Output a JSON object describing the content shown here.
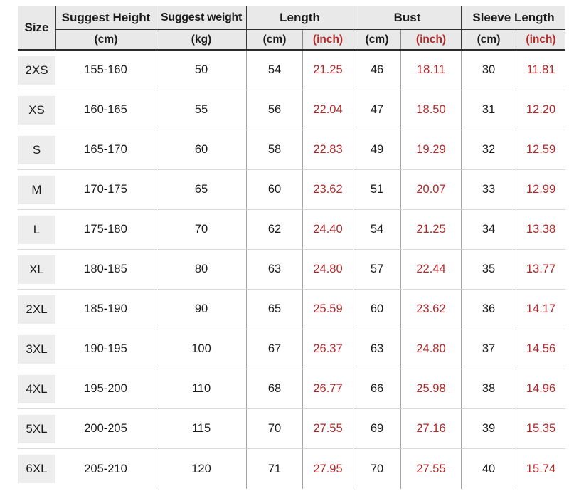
{
  "chart_data": {
    "type": "table",
    "header": {
      "size": "Size",
      "groups": [
        {
          "label": "Suggest Height",
          "units": [
            "(cm)"
          ]
        },
        {
          "label": "Suggest weight",
          "units": [
            "(kg)"
          ]
        },
        {
          "label": "Length",
          "units": [
            "(cm)",
            "(inch)"
          ]
        },
        {
          "label": "Bust",
          "units": [
            "(cm)",
            "(inch)"
          ]
        },
        {
          "label": "Sleeve Length",
          "units": [
            "(cm)",
            "(inch)"
          ]
        }
      ]
    },
    "columns": [
      "Size",
      "Suggest Height (cm)",
      "Suggest weight (kg)",
      "Length (cm)",
      "Length (inch)",
      "Bust (cm)",
      "Bust (inch)",
      "Sleeve Length (cm)",
      "Sleeve Length (inch)"
    ],
    "rows": [
      [
        "2XS",
        "155-160",
        "50",
        "54",
        "21.25",
        "46",
        "18.11",
        "30",
        "11.81"
      ],
      [
        "XS",
        "160-165",
        "55",
        "56",
        "22.04",
        "47",
        "18.50",
        "31",
        "12.20"
      ],
      [
        "S",
        "165-170",
        "60",
        "58",
        "22.83",
        "49",
        "19.29",
        "32",
        "12.59"
      ],
      [
        "M",
        "170-175",
        "65",
        "60",
        "23.62",
        "51",
        "20.07",
        "33",
        "12.99"
      ],
      [
        "L",
        "175-180",
        "70",
        "62",
        "24.40",
        "54",
        "21.25",
        "34",
        "13.38"
      ],
      [
        "XL",
        "180-185",
        "80",
        "63",
        "24.80",
        "57",
        "22.44",
        "35",
        "13.77"
      ],
      [
        "2XL",
        "185-190",
        "90",
        "65",
        "25.59",
        "60",
        "23.62",
        "36",
        "14.17"
      ],
      [
        "3XL",
        "190-195",
        "100",
        "67",
        "26.37",
        "63",
        "24.80",
        "37",
        "14.56"
      ],
      [
        "4XL",
        "195-200",
        "110",
        "68",
        "26.77",
        "66",
        "25.98",
        "38",
        "14.96"
      ],
      [
        "5XL",
        "200-205",
        "115",
        "70",
        "27.55",
        "69",
        "27.16",
        "39",
        "15.35"
      ],
      [
        "6XL",
        "205-210",
        "120",
        "71",
        "27.95",
        "70",
        "27.55",
        "40",
        "15.74"
      ]
    ],
    "layout": {
      "grid": "on",
      "inch_columns_color": "#b3292a"
    }
  },
  "colors": {
    "accent_red": "#b3292a",
    "header_bg": "#e9e9e9",
    "size_cell_bg": "#ededed",
    "row_divider": "#d9d9d9",
    "column_line": "#a3a3a3",
    "header_line": "#2c2c2c"
  }
}
